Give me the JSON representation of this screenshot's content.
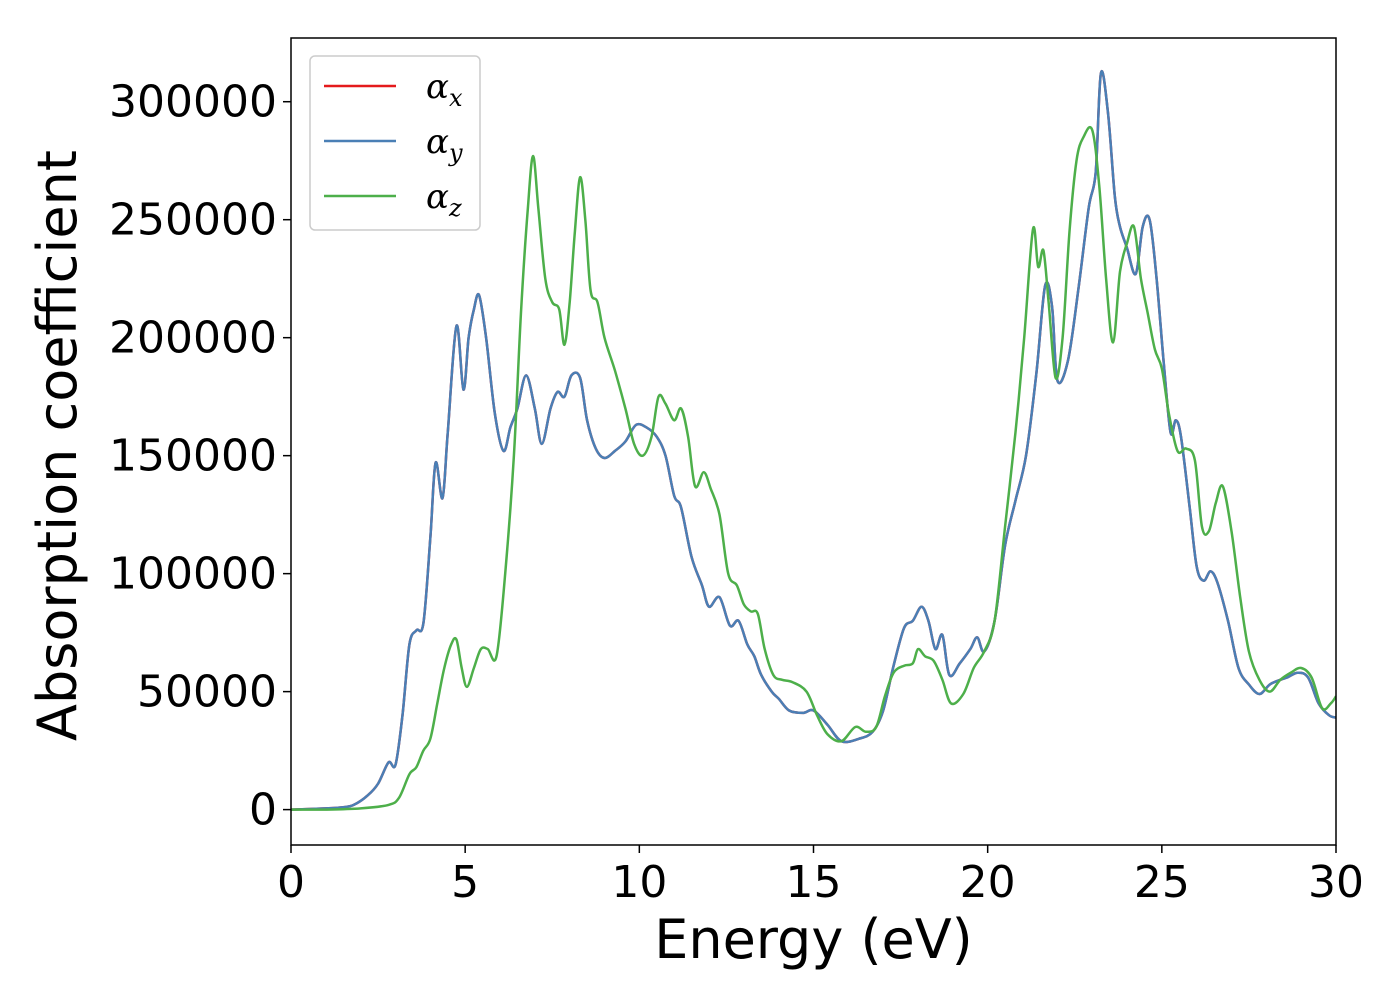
{
  "chart_data": {
    "type": "line",
    "xlabel": "Energy (eV)",
    "ylabel": "Absorption coefficient",
    "xlim": [
      0,
      30
    ],
    "ylim": [
      -15000,
      327000
    ],
    "xticks": [
      0,
      5,
      10,
      15,
      20,
      25,
      30
    ],
    "yticks": [
      0,
      50000,
      100000,
      150000,
      200000,
      250000,
      300000
    ],
    "legend_position": "top-left",
    "grid": false,
    "series": [
      {
        "name": "αx",
        "name_main": "α",
        "name_sub": "x",
        "color": "#e41a1c",
        "x": [
          0,
          1,
          1.5,
          1.8,
          2.2,
          2.5,
          2.8,
          3.0,
          3.2,
          3.4,
          3.6,
          3.8,
          4.0,
          4.15,
          4.35,
          4.5,
          4.75,
          4.95,
          5.1,
          5.25,
          5.4,
          5.6,
          5.85,
          6.1,
          6.3,
          6.5,
          6.75,
          7.0,
          7.2,
          7.45,
          7.65,
          7.85,
          8.05,
          8.3,
          8.5,
          8.75,
          9.0,
          9.3,
          9.6,
          9.9,
          10.2,
          10.5,
          10.75,
          11.0,
          11.2,
          11.5,
          11.8,
          12.0,
          12.3,
          12.6,
          12.85,
          13.1,
          13.3,
          13.5,
          13.8,
          14.0,
          14.3,
          14.7,
          15.0,
          15.4,
          15.8,
          16.3,
          16.7,
          17.0,
          17.3,
          17.6,
          17.85,
          18.1,
          18.3,
          18.5,
          18.7,
          18.9,
          19.2,
          19.5,
          19.7,
          19.9,
          20.2,
          20.5,
          20.8,
          21.1,
          21.4,
          21.65,
          21.85,
          22.0,
          22.3,
          22.6,
          22.9,
          23.1,
          23.25,
          23.45,
          23.65,
          23.8,
          24.0,
          24.25,
          24.45,
          24.65,
          24.85,
          25.05,
          25.25,
          25.4,
          25.55,
          25.8,
          26.0,
          26.2,
          26.4,
          26.6,
          26.9,
          27.2,
          27.5,
          27.8,
          28.1,
          28.4,
          28.6,
          28.9,
          29.2,
          29.5,
          29.8,
          30
        ],
        "values": [
          0,
          500,
          1000,
          2000,
          6000,
          11000,
          20000,
          19000,
          40000,
          70000,
          76000,
          79000,
          115000,
          147000,
          132000,
          160000,
          205000,
          178000,
          200000,
          212000,
          218000,
          200000,
          168000,
          152000,
          162000,
          170000,
          184000,
          170000,
          155000,
          170000,
          177000,
          175000,
          184000,
          183000,
          165000,
          153000,
          149000,
          152000,
          156000,
          163000,
          162000,
          158000,
          150000,
          133000,
          128000,
          107000,
          95000,
          86000,
          90000,
          78000,
          80000,
          70000,
          65000,
          57000,
          50000,
          47000,
          42000,
          41000,
          42000,
          36000,
          29000,
          30000,
          33000,
          42000,
          61000,
          77000,
          80000,
          86000,
          80000,
          68000,
          74000,
          57000,
          62000,
          68000,
          73000,
          67000,
          80000,
          112000,
          131000,
          150000,
          185000,
          222000,
          213000,
          182000,
          190000,
          220000,
          255000,
          270000,
          312000,
          296000,
          260000,
          247000,
          238000,
          227000,
          247000,
          250000,
          225000,
          190000,
          160000,
          165000,
          158000,
          128000,
          103000,
          97000,
          101000,
          96000,
          80000,
          60000,
          53000,
          49000,
          53000,
          55000,
          56000,
          58000,
          56000,
          45000,
          40000,
          39000
        ]
      },
      {
        "name": "αy",
        "name_main": "α",
        "name_sub": "y",
        "color": "#4a7fb5",
        "x": [
          0,
          1,
          1.5,
          1.8,
          2.2,
          2.5,
          2.8,
          3.0,
          3.2,
          3.4,
          3.6,
          3.8,
          4.0,
          4.15,
          4.35,
          4.5,
          4.75,
          4.95,
          5.1,
          5.25,
          5.4,
          5.6,
          5.85,
          6.1,
          6.3,
          6.5,
          6.75,
          7.0,
          7.2,
          7.45,
          7.65,
          7.85,
          8.05,
          8.3,
          8.5,
          8.75,
          9.0,
          9.3,
          9.6,
          9.9,
          10.2,
          10.5,
          10.75,
          11.0,
          11.2,
          11.5,
          11.8,
          12.0,
          12.3,
          12.6,
          12.85,
          13.1,
          13.3,
          13.5,
          13.8,
          14.0,
          14.3,
          14.7,
          15.0,
          15.4,
          15.8,
          16.3,
          16.7,
          17.0,
          17.3,
          17.6,
          17.85,
          18.1,
          18.3,
          18.5,
          18.7,
          18.9,
          19.2,
          19.5,
          19.7,
          19.9,
          20.2,
          20.5,
          20.8,
          21.1,
          21.4,
          21.65,
          21.85,
          22.0,
          22.3,
          22.6,
          22.9,
          23.1,
          23.25,
          23.45,
          23.65,
          23.8,
          24.0,
          24.25,
          24.45,
          24.65,
          24.85,
          25.05,
          25.25,
          25.4,
          25.55,
          25.8,
          26.0,
          26.2,
          26.4,
          26.6,
          26.9,
          27.2,
          27.5,
          27.8,
          28.1,
          28.4,
          28.6,
          28.9,
          29.2,
          29.5,
          29.8,
          30
        ],
        "values": [
          0,
          500,
          1000,
          2000,
          6000,
          11000,
          20000,
          19000,
          40000,
          70000,
          76000,
          79000,
          115000,
          147000,
          132000,
          160000,
          205000,
          178000,
          200000,
          212000,
          218000,
          200000,
          168000,
          152000,
          162000,
          170000,
          184000,
          170000,
          155000,
          170000,
          177000,
          175000,
          184000,
          183000,
          165000,
          153000,
          149000,
          152000,
          156000,
          163000,
          162000,
          158000,
          150000,
          133000,
          128000,
          107000,
          95000,
          86000,
          90000,
          78000,
          80000,
          70000,
          65000,
          57000,
          50000,
          47000,
          42000,
          41000,
          42000,
          36000,
          29000,
          30000,
          33000,
          42000,
          61000,
          77000,
          80000,
          86000,
          80000,
          68000,
          74000,
          57000,
          62000,
          68000,
          73000,
          67000,
          80000,
          112000,
          131000,
          150000,
          185000,
          222000,
          213000,
          182000,
          190000,
          220000,
          255000,
          270000,
          312000,
          296000,
          260000,
          247000,
          238000,
          227000,
          247000,
          250000,
          225000,
          190000,
          160000,
          165000,
          158000,
          128000,
          103000,
          97000,
          101000,
          96000,
          80000,
          60000,
          53000,
          49000,
          53000,
          55000,
          56000,
          58000,
          56000,
          45000,
          40000,
          39000
        ]
      },
      {
        "name": "αz",
        "name_main": "α",
        "name_sub": "z",
        "color": "#4daf4a",
        "x": [
          0,
          1,
          2,
          2.8,
          3.1,
          3.4,
          3.6,
          3.8,
          4.0,
          4.2,
          4.4,
          4.6,
          4.75,
          4.9,
          5.05,
          5.25,
          5.45,
          5.65,
          5.9,
          6.15,
          6.4,
          6.6,
          6.8,
          6.95,
          7.1,
          7.3,
          7.5,
          7.7,
          7.85,
          8.0,
          8.15,
          8.3,
          8.45,
          8.6,
          8.8,
          9.0,
          9.3,
          9.6,
          9.85,
          10.1,
          10.35,
          10.55,
          10.75,
          11.0,
          11.2,
          11.4,
          11.6,
          11.85,
          12.05,
          12.3,
          12.55,
          12.8,
          13.0,
          13.2,
          13.4,
          13.6,
          13.85,
          14.1,
          14.4,
          14.8,
          15.1,
          15.4,
          15.8,
          16.2,
          16.5,
          16.8,
          17.05,
          17.3,
          17.6,
          17.85,
          18.0,
          18.2,
          18.45,
          18.7,
          18.95,
          19.3,
          19.6,
          19.9,
          20.2,
          20.5,
          20.8,
          21.05,
          21.3,
          21.45,
          21.6,
          21.75,
          21.95,
          22.15,
          22.35,
          22.55,
          22.75,
          23.0,
          23.2,
          23.4,
          23.6,
          23.8,
          24.0,
          24.2,
          24.4,
          24.6,
          24.8,
          25.0,
          25.2,
          25.45,
          25.7,
          25.95,
          26.15,
          26.35,
          26.55,
          26.75,
          27.0,
          27.25,
          27.5,
          27.8,
          28.1,
          28.4,
          28.7,
          29.0,
          29.3,
          29.6,
          29.85,
          30
        ],
        "values": [
          0,
          0,
          500,
          2000,
          5000,
          15000,
          18000,
          25000,
          30000,
          45000,
          60000,
          70000,
          72000,
          60000,
          52000,
          60000,
          68000,
          68000,
          65000,
          100000,
          150000,
          210000,
          255000,
          277000,
          255000,
          225000,
          215000,
          212000,
          197000,
          215000,
          245000,
          268000,
          250000,
          220000,
          215000,
          200000,
          186000,
          170000,
          155000,
          150000,
          158000,
          175000,
          172000,
          165000,
          170000,
          158000,
          137000,
          143000,
          136000,
          125000,
          100000,
          95000,
          87000,
          84000,
          83000,
          68000,
          57000,
          55000,
          54000,
          50000,
          40000,
          32000,
          29000,
          35000,
          33000,
          35000,
          48000,
          58000,
          61000,
          62000,
          68000,
          65000,
          63000,
          55000,
          45000,
          49000,
          60000,
          67000,
          80000,
          120000,
          160000,
          200000,
          246000,
          230000,
          237000,
          215000,
          183000,
          200000,
          245000,
          275000,
          285000,
          288000,
          265000,
          225000,
          198000,
          228000,
          240000,
          247000,
          225000,
          210000,
          195000,
          187000,
          168000,
          152000,
          153000,
          148000,
          120000,
          118000,
          130000,
          137000,
          118000,
          90000,
          67000,
          55000,
          50000,
          55000,
          58000,
          60000,
          56000,
          43000,
          45000,
          48000
        ]
      }
    ]
  }
}
